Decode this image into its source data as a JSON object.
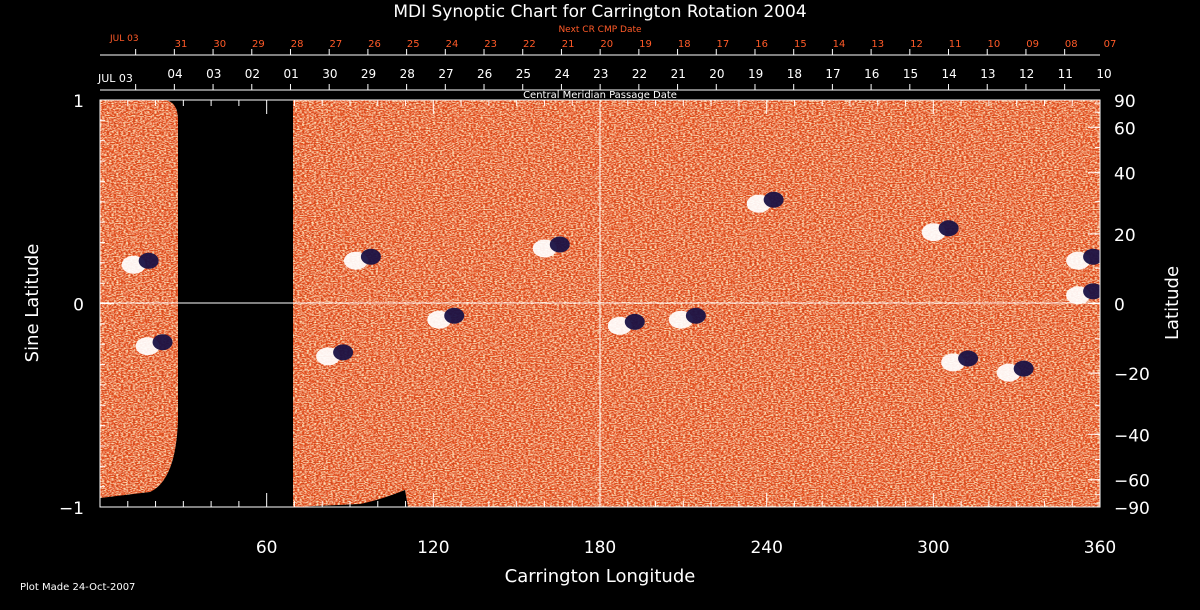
{
  "chart_data": {
    "type": "heatmap",
    "title": "MDI Synoptic Chart for Carrington Rotation 2004",
    "xlabel": "Carrington Longitude",
    "ylabel_left": "Sine Latitude",
    "ylabel_right": "Latitude",
    "xlim": [
      0,
      360
    ],
    "ylim": [
      -1,
      1
    ],
    "x_ticks": [
      60,
      120,
      180,
      240,
      300,
      360
    ],
    "y_ticks_left": [
      1,
      0,
      -1
    ],
    "y_tick_labels_left": [
      "1",
      "0",
      "−1"
    ],
    "latitude_ticks": [
      90,
      60,
      40,
      20,
      0,
      -20,
      -40,
      -60,
      -90
    ],
    "latitude_tick_labels": [
      "90",
      "60",
      "40",
      "20",
      "0",
      "−20",
      "−40",
      "−60",
      "−90"
    ],
    "cmp_axis": {
      "label": "Central Meridian Passage Date",
      "start_label": "JUL 03",
      "dates": [
        "04",
        "03",
        "02",
        "01",
        "30",
        "29",
        "28",
        "27",
        "26",
        "25",
        "24",
        "23",
        "22",
        "21",
        "20",
        "19",
        "18",
        "17",
        "16",
        "15",
        "14",
        "13",
        "12",
        "11",
        "10"
      ]
    },
    "next_cr_axis": {
      "label": "Next CR CMP Date",
      "start_label": "JUL 03",
      "dates": [
        "31",
        "30",
        "29",
        "28",
        "27",
        "26",
        "25",
        "24",
        "23",
        "22",
        "21",
        "20",
        "19",
        "18",
        "17",
        "16",
        "15",
        "14",
        "13",
        "12",
        "11",
        "10",
        "09",
        "08",
        "07"
      ]
    },
    "missing_data_longitudes": [
      27,
      70
    ],
    "reference_lines": {
      "longitude": 180,
      "sine_latitude": 0
    },
    "active_regions": [
      {
        "lon": 163,
        "sinlat": 0.28
      },
      {
        "lon": 240,
        "sinlat": 0.5
      },
      {
        "lon": 303,
        "sinlat": 0.36
      },
      {
        "lon": 355,
        "sinlat": 0.22
      },
      {
        "lon": 355,
        "sinlat": 0.05
      },
      {
        "lon": 125,
        "sinlat": -0.07
      },
      {
        "lon": 212,
        "sinlat": -0.07
      },
      {
        "lon": 190,
        "sinlat": -0.1
      },
      {
        "lon": 310,
        "sinlat": -0.28
      },
      {
        "lon": 330,
        "sinlat": -0.33
      },
      {
        "lon": 15,
        "sinlat": 0.2
      },
      {
        "lon": 20,
        "sinlat": -0.2
      },
      {
        "lon": 95,
        "sinlat": 0.22
      },
      {
        "lon": 85,
        "sinlat": -0.25
      }
    ],
    "colors": {
      "background": "#000000",
      "field": "#e8501a",
      "positive": "#ffffff",
      "negative": "#1a1245",
      "cmp_text": "#ffffff",
      "next_cr_text": "#ff5a28"
    }
  },
  "footer": "Plot Made 24-Oct-2007"
}
